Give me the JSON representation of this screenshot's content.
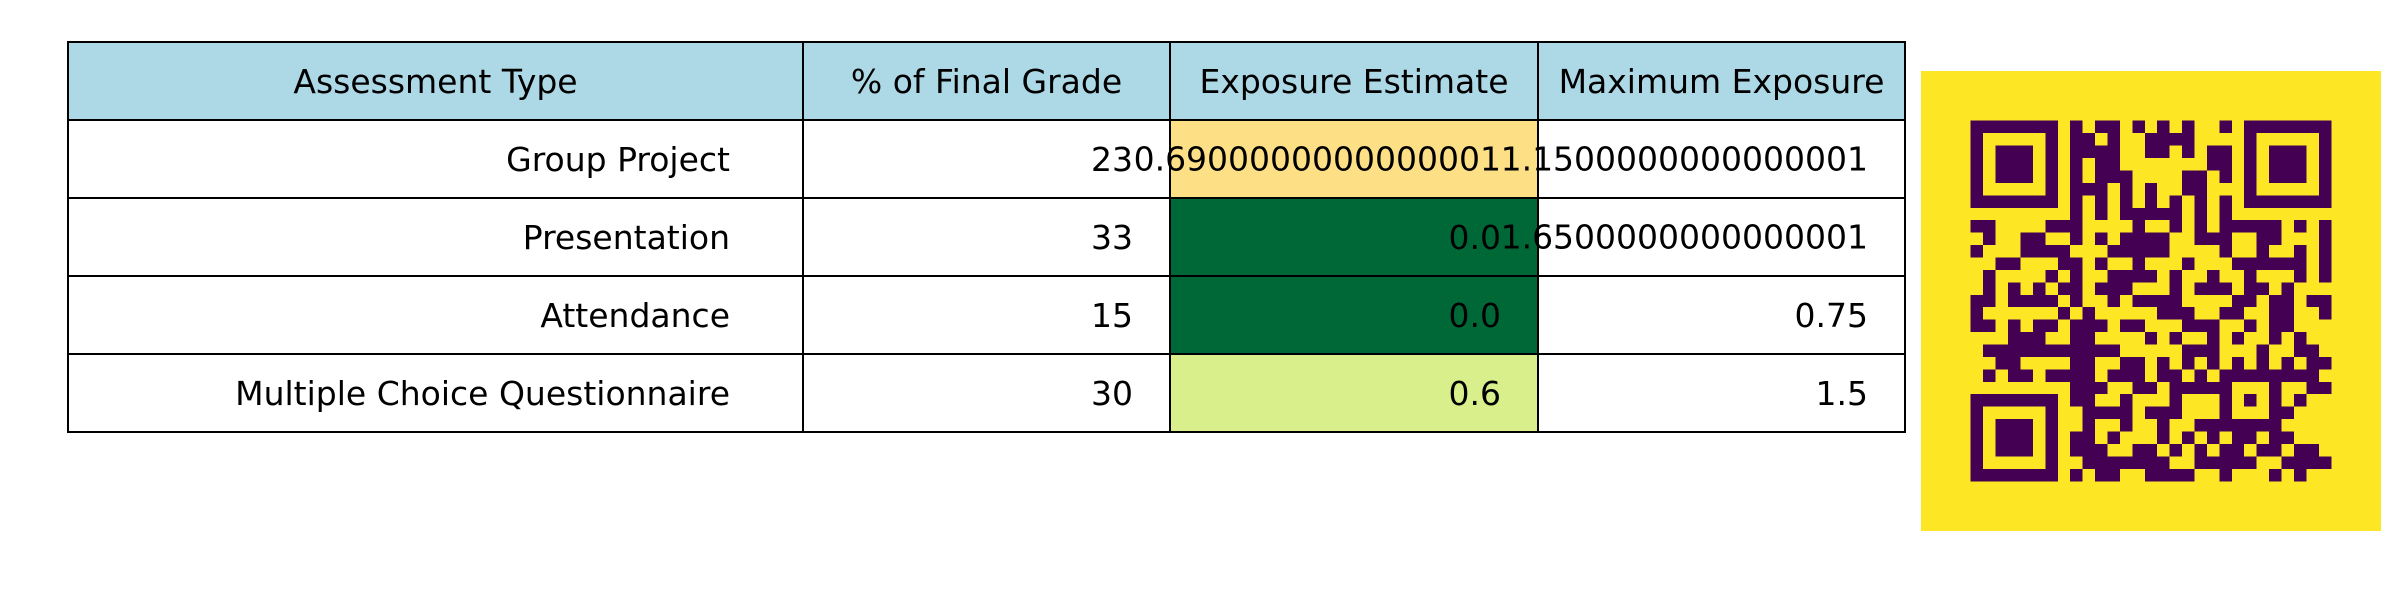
{
  "chart_data": {
    "type": "table",
    "columns": [
      "Assessment Type",
      "% of Final Grade",
      "Exposure Estimate",
      "Maximum Exposure"
    ],
    "rows": [
      [
        "Group Project",
        "23",
        "0.6900000000000001",
        "1.1500000000000001"
      ],
      [
        "Presentation",
        "33",
        "0.0",
        "1.6500000000000001"
      ],
      [
        "Attendance",
        "15",
        "0.0",
        "0.75"
      ],
      [
        "Multiple Choice Questionnaire",
        "30",
        "0.6",
        "1.5"
      ]
    ],
    "exposure_values": [
      0.69,
      0.0,
      0.0,
      0.6
    ],
    "cell_colors": {
      "header": "#add8e6",
      "exposure": [
        "#fddf86",
        "#006837",
        "#006837",
        "#d9ef8b"
      ],
      "default": "#ffffff"
    }
  },
  "qr_code": {
    "background": "#fde725",
    "foreground": "#440154"
  }
}
